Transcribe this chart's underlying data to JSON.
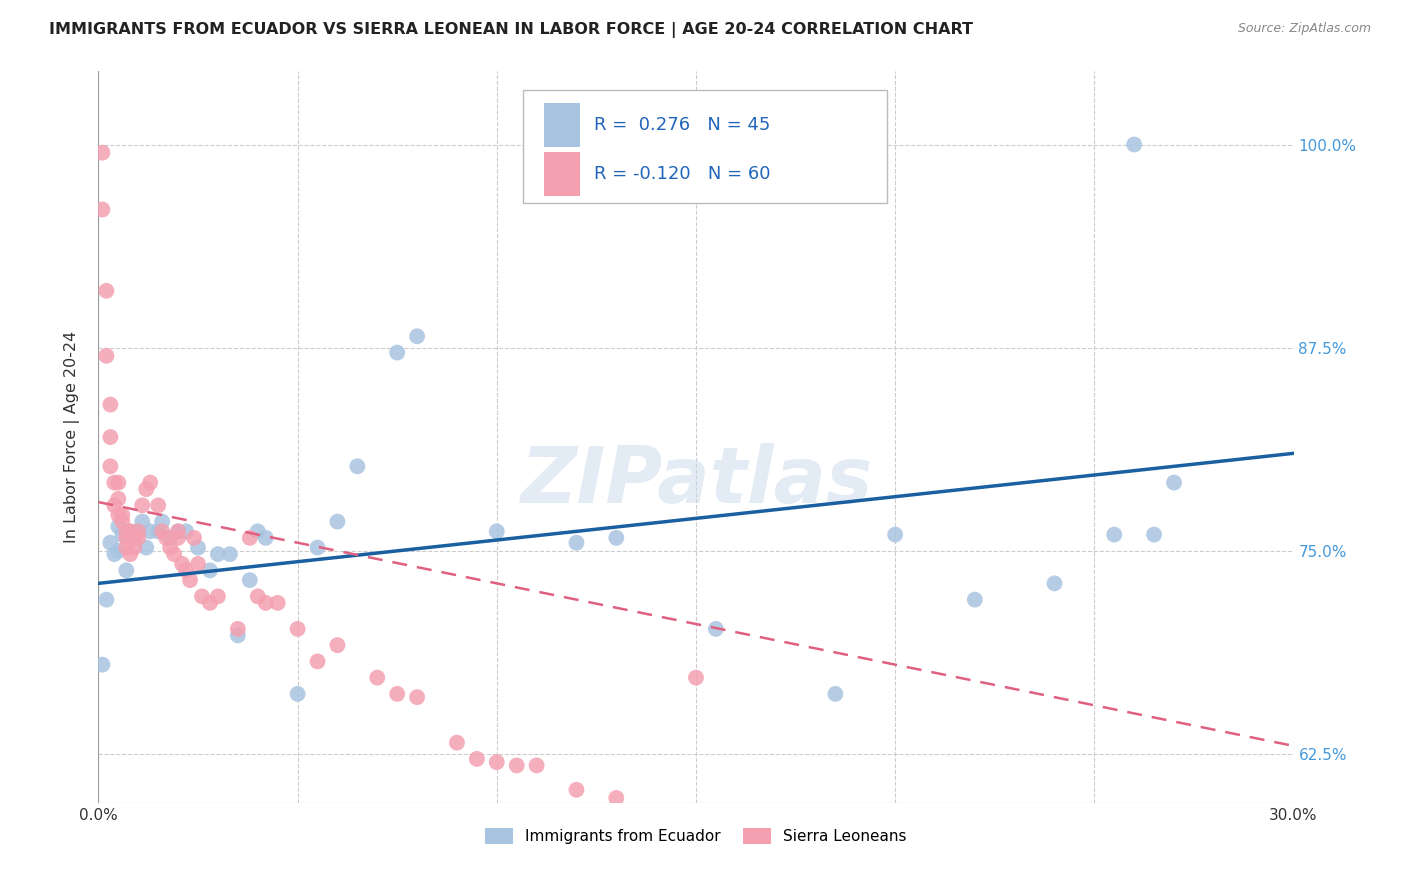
{
  "title": "IMMIGRANTS FROM ECUADOR VS SIERRA LEONEAN IN LABOR FORCE | AGE 20-24 CORRELATION CHART",
  "source": "Source: ZipAtlas.com",
  "ylabel": "In Labor Force | Age 20-24",
  "y_ticks": [
    0.625,
    0.75,
    0.875,
    1.0
  ],
  "y_tick_labels": [
    "62.5%",
    "75.0%",
    "87.5%",
    "100.0%"
  ],
  "legend_labels": [
    "Immigrants from Ecuador",
    "Sierra Leoneans"
  ],
  "ecuador_color": "#a8c4e0",
  "sierra_color": "#f4a0b0",
  "ecuador_line_color": "#1a5fa0",
  "sierra_line_color": "#e06080",
  "background_color": "#ffffff",
  "watermark": "ZIPatlas",
  "xlim": [
    0.0,
    0.3
  ],
  "ylim": [
    0.595,
    1.045
  ],
  "ecuador_scatter_x": [
    0.001,
    0.002,
    0.003,
    0.004,
    0.005,
    0.005,
    0.006,
    0.007,
    0.008,
    0.009,
    0.01,
    0.011,
    0.012,
    0.013,
    0.015,
    0.016,
    0.018,
    0.02,
    0.022,
    0.025,
    0.028,
    0.03,
    0.033,
    0.035,
    0.038,
    0.04,
    0.042,
    0.05,
    0.055,
    0.06,
    0.065,
    0.075,
    0.08,
    0.1,
    0.12,
    0.13,
    0.155,
    0.185,
    0.2,
    0.22,
    0.24,
    0.255,
    0.26,
    0.265,
    0.27
  ],
  "ecuador_scatter_y": [
    0.68,
    0.72,
    0.755,
    0.748,
    0.75,
    0.765,
    0.76,
    0.738,
    0.762,
    0.758,
    0.762,
    0.768,
    0.752,
    0.762,
    0.762,
    0.768,
    0.758,
    0.762,
    0.762,
    0.752,
    0.738,
    0.748,
    0.748,
    0.698,
    0.732,
    0.762,
    0.758,
    0.662,
    0.752,
    0.768,
    0.802,
    0.872,
    0.882,
    0.762,
    0.755,
    0.758,
    0.702,
    0.662,
    0.76,
    0.72,
    0.73,
    0.76,
    1.0,
    0.76,
    0.792
  ],
  "sierra_scatter_x": [
    0.001,
    0.001,
    0.002,
    0.002,
    0.003,
    0.003,
    0.003,
    0.004,
    0.004,
    0.005,
    0.005,
    0.005,
    0.006,
    0.006,
    0.007,
    0.007,
    0.007,
    0.008,
    0.008,
    0.009,
    0.009,
    0.01,
    0.01,
    0.011,
    0.012,
    0.013,
    0.015,
    0.016,
    0.017,
    0.018,
    0.019,
    0.02,
    0.02,
    0.021,
    0.022,
    0.023,
    0.024,
    0.025,
    0.026,
    0.028,
    0.03,
    0.035,
    0.038,
    0.04,
    0.042,
    0.045,
    0.05,
    0.055,
    0.06,
    0.07,
    0.075,
    0.08,
    0.09,
    0.095,
    0.1,
    0.105,
    0.11,
    0.12,
    0.13,
    0.15
  ],
  "sierra_scatter_y": [
    0.995,
    0.96,
    0.91,
    0.87,
    0.84,
    0.82,
    0.802,
    0.792,
    0.778,
    0.792,
    0.782,
    0.772,
    0.772,
    0.768,
    0.762,
    0.758,
    0.752,
    0.748,
    0.762,
    0.758,
    0.752,
    0.762,
    0.758,
    0.778,
    0.788,
    0.792,
    0.778,
    0.762,
    0.758,
    0.752,
    0.748,
    0.758,
    0.762,
    0.742,
    0.738,
    0.732,
    0.758,
    0.742,
    0.722,
    0.718,
    0.722,
    0.702,
    0.758,
    0.722,
    0.718,
    0.718,
    0.702,
    0.682,
    0.692,
    0.672,
    0.662,
    0.66,
    0.632,
    0.622,
    0.62,
    0.618,
    0.618,
    0.603,
    0.598,
    0.672
  ]
}
